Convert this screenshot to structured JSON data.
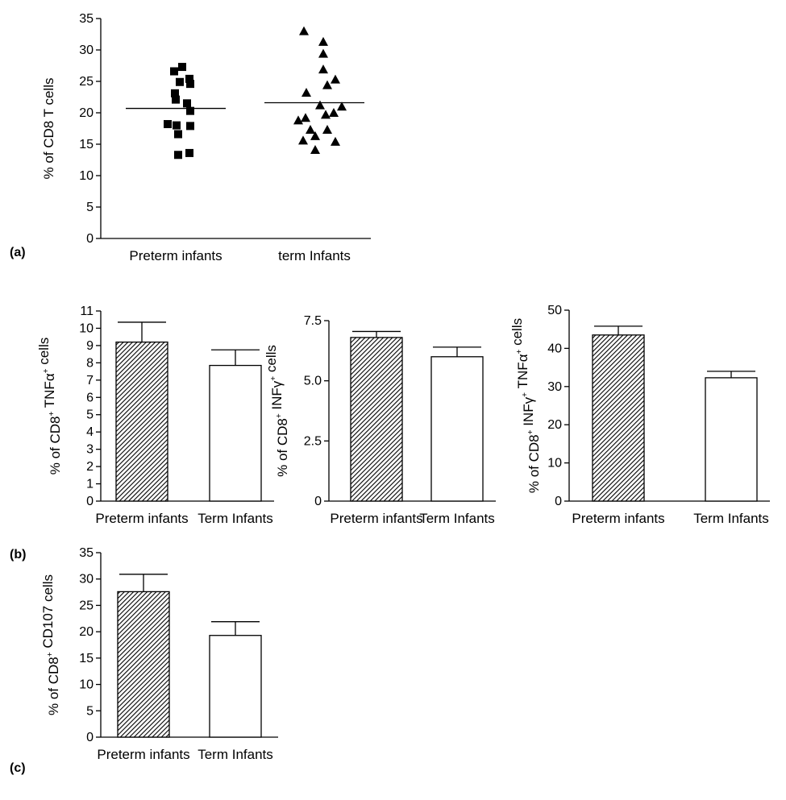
{
  "panels": {
    "a": "(a)",
    "b": "(b)",
    "c": "(c)"
  },
  "chart_data": [
    {
      "id": "a",
      "type": "scatter",
      "ylabel": "% of CD8 T cells",
      "categories": [
        "Preterm infants",
        "term Infants"
      ],
      "ylim": [
        0,
        35
      ],
      "yticks": [
        "0",
        "5",
        "10",
        "15",
        "20",
        "25",
        "30",
        "35"
      ],
      "series": [
        {
          "category": "Preterm infants",
          "marker": "square",
          "values": [
            27.3,
            26.6,
            25.4,
            24.9,
            24.6,
            23.1,
            22.1,
            21.5,
            20.3,
            18.2,
            18.0,
            17.9,
            16.6,
            13.6,
            13.3
          ],
          "jitter": [
            0.8,
            -0.2,
            1.7,
            0.5,
            1.8,
            -0.1,
            0.0,
            1.4,
            1.8,
            -1.0,
            0.1,
            1.8,
            0.3,
            1.7,
            0.3
          ],
          "mean": 20.7
        },
        {
          "category": "term Infants",
          "marker": "triangle",
          "values": [
            33.0,
            31.3,
            29.4,
            26.9,
            25.3,
            24.4,
            23.2,
            21.2,
            21.0,
            20.0,
            19.7,
            19.2,
            18.8,
            17.3,
            17.3,
            16.3,
            15.6,
            15.4,
            14.1
          ],
          "jitter": [
            -1.3,
            1.1,
            1.1,
            1.1,
            2.6,
            1.6,
            -1.0,
            0.7,
            3.4,
            2.4,
            1.4,
            -1.1,
            -2.0,
            -0.5,
            1.6,
            0.1,
            -1.4,
            2.6,
            0.1
          ],
          "mean": 21.6
        }
      ]
    },
    {
      "id": "b1",
      "type": "bar",
      "ylabel": "% of CD8+ TNFα+ cells",
      "categories": [
        "Preterm infants",
        "Term Infants"
      ],
      "values": [
        9.2,
        7.85
      ],
      "errors": [
        1.15,
        0.9
      ],
      "ylim": [
        0,
        11
      ],
      "yticks": [
        "0",
        "1",
        "2",
        "3",
        "4",
        "5",
        "6",
        "7",
        "8",
        "9",
        "10",
        "11"
      ]
    },
    {
      "id": "b2",
      "type": "bar",
      "ylabel": "% of CD8+ INFγ+ cells",
      "categories": [
        "Preterm infants",
        "Term Infants"
      ],
      "values": [
        6.8,
        6.0
      ],
      "errors": [
        0.25,
        0.4
      ],
      "ylim": [
        0,
        7.5
      ],
      "yticks": [
        "0",
        "2.5",
        "5.0",
        "7.5"
      ]
    },
    {
      "id": "b3",
      "type": "bar",
      "ylabel": "% of CD8+ INFγ+ TNFα+ cells",
      "categories": [
        "Preterm infants",
        "Term Infants"
      ],
      "values": [
        43.5,
        32.3
      ],
      "errors": [
        2.3,
        1.7
      ],
      "ylim": [
        0,
        50
      ],
      "yticks": [
        "0",
        "10",
        "20",
        "30",
        "40",
        "50"
      ]
    },
    {
      "id": "c",
      "type": "bar",
      "ylabel": "% of CD8+ CD107 cells",
      "categories": [
        "Preterm infants",
        "Term Infants"
      ],
      "values": [
        27.6,
        19.3
      ],
      "errors": [
        3.3,
        2.6
      ],
      "ylim": [
        0,
        35
      ],
      "yticks": [
        "0",
        "5",
        "10",
        "15",
        "20",
        "25",
        "30",
        "35"
      ]
    }
  ]
}
